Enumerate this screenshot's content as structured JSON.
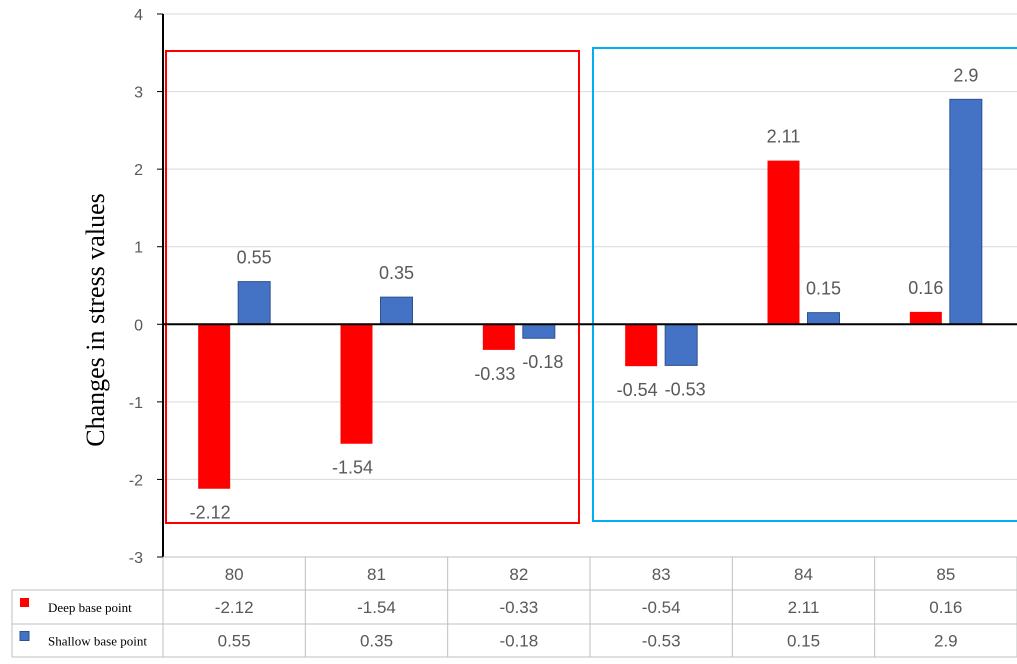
{
  "chart_data": {
    "type": "bar",
    "categories": [
      "80",
      "81",
      "82",
      "83",
      "84",
      "85"
    ],
    "series": [
      {
        "name": "Deep base point",
        "color": "#ff0000",
        "values": [
          -2.12,
          -1.54,
          -0.33,
          -0.54,
          2.11,
          0.16
        ]
      },
      {
        "name": "Shallow base point",
        "color": "#4472c4",
        "values": [
          0.55,
          0.35,
          -0.18,
          -0.53,
          0.15,
          2.9
        ]
      }
    ],
    "ylabel": "Changes in stress values",
    "ylim": [
      -3,
      4
    ],
    "yticks": [
      -3,
      -2,
      -1,
      0,
      1,
      2,
      3,
      4
    ],
    "grid": true,
    "data_table": true,
    "highlight_boxes": [
      {
        "categories": [
          "80",
          "81",
          "82"
        ],
        "color": "#ff0000"
      },
      {
        "categories": [
          "83",
          "84",
          "85"
        ],
        "color": "#00b0f0"
      }
    ]
  }
}
